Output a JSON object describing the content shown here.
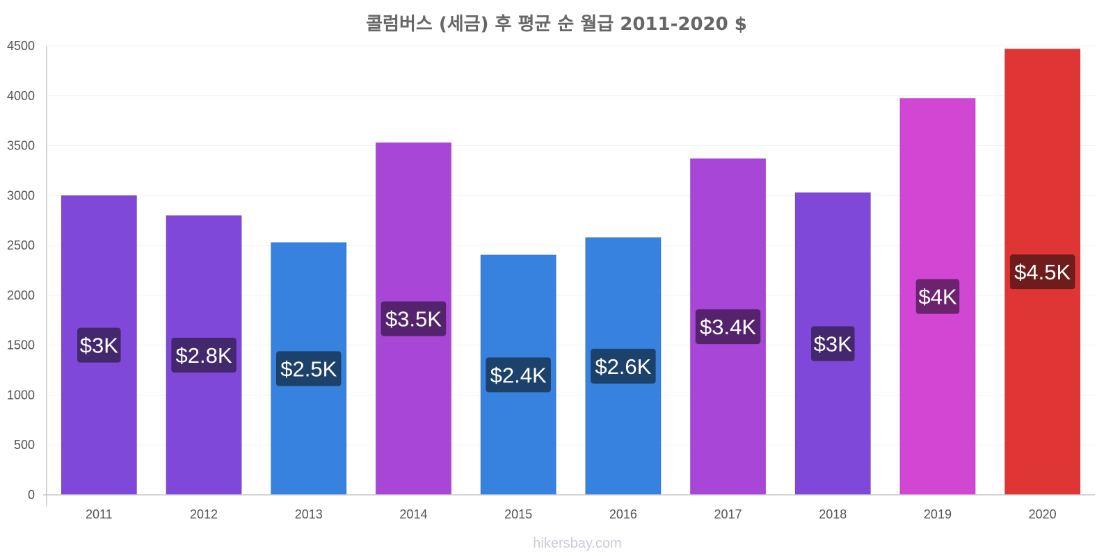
{
  "chart_data": {
    "type": "bar",
    "title": "콜럼버스 (세금) 후 평균 순 월급 2011-2020 $",
    "xlabel": "",
    "ylabel": "",
    "categories": [
      "2011",
      "2012",
      "2013",
      "2014",
      "2015",
      "2016",
      "2017",
      "2018",
      "2019",
      "2020"
    ],
    "values": [
      3000,
      2800,
      2530,
      3530,
      2405,
      2580,
      3370,
      3030,
      3975,
      4470
    ],
    "data_labels": [
      "$3K",
      "$2.8K",
      "$2.5K",
      "$3.5K",
      "$2.4K",
      "$2.6K",
      "$3.4K",
      "$3K",
      "$4K",
      "$4.5K"
    ],
    "yticks": [
      "0",
      "500",
      "1000",
      "1500",
      "2000",
      "2500",
      "3000",
      "3500",
      "4000",
      "4500"
    ],
    "ylim": [
      0,
      4500
    ],
    "grid": true,
    "legend": "none",
    "bar_colors": [
      "#8048d8",
      "#8048d8",
      "#3682de",
      "#a846d8",
      "#3682de",
      "#3682de",
      "#a846d8",
      "#8048d8",
      "#d246d4",
      "#e03535"
    ],
    "label_box_colors": [
      "#43286e",
      "#43286e",
      "#1c416a",
      "#54236c",
      "#1c416a",
      "#1c416a",
      "#54236c",
      "#43286e",
      "#6a236c",
      "#6f1c1c"
    ]
  },
  "watermark": "hikersbay.com"
}
